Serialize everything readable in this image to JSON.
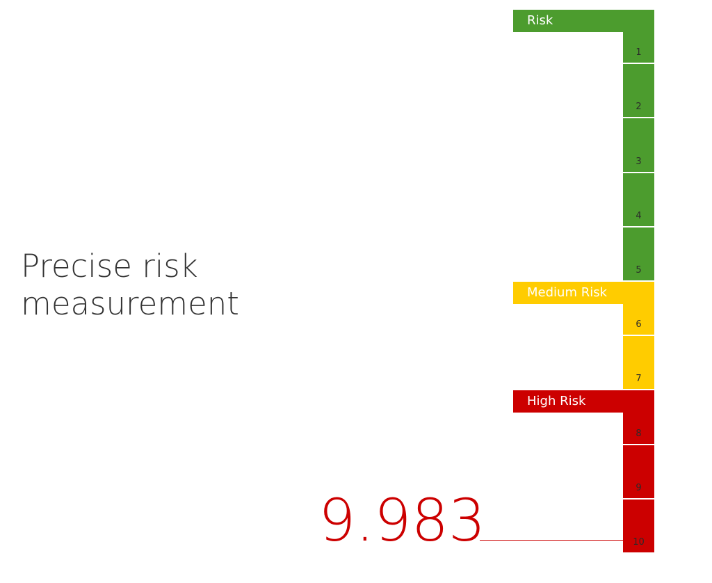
{
  "headline": {
    "line1": "Precise risk",
    "line2": "measurement"
  },
  "scale": {
    "levels": [
      "1",
      "2",
      "3",
      "4",
      "5",
      "6",
      "7",
      "8",
      "9",
      "10"
    ],
    "bands": [
      {
        "label": "Risk",
        "from": 1,
        "to": 5,
        "color": "#4c9c2e"
      },
      {
        "label": "Medium Risk",
        "from": 6,
        "to": 7,
        "color": "#ffcc00"
      },
      {
        "label": "High Risk",
        "from": 8,
        "to": 10,
        "color": "#cc0000"
      }
    ]
  },
  "readout": {
    "value": "9.983",
    "color": "#cc0000"
  }
}
